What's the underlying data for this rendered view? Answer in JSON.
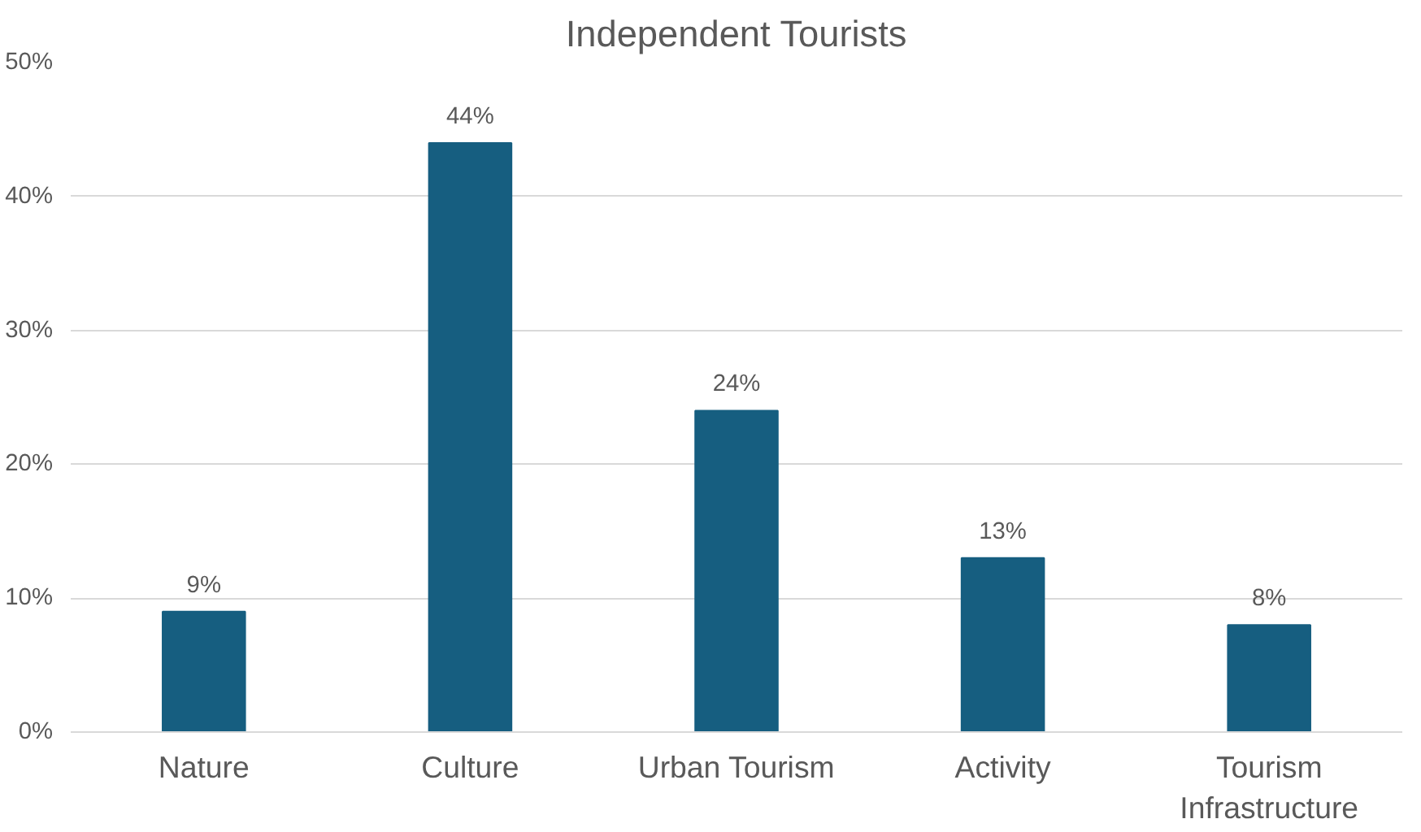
{
  "chart_data": {
    "type": "bar",
    "title": "Independent Tourists",
    "categories": [
      "Nature",
      "Culture",
      "Urban Tourism",
      "Activity",
      "Tourism Infrastructure"
    ],
    "values": [
      9,
      44,
      24,
      13,
      8
    ],
    "value_labels": [
      "9%",
      "44%",
      "24%",
      "13%",
      "8%"
    ],
    "color": "#165e80",
    "ylim": [
      0,
      50
    ],
    "yticks": [
      {
        "value": 0,
        "label": "0%"
      },
      {
        "value": 10,
        "label": "10%"
      },
      {
        "value": 20,
        "label": "20%"
      },
      {
        "value": 30,
        "label": "30%"
      },
      {
        "value": 40,
        "label": "40%"
      },
      {
        "value": 50,
        "label": "50%"
      }
    ],
    "grid": "y"
  }
}
